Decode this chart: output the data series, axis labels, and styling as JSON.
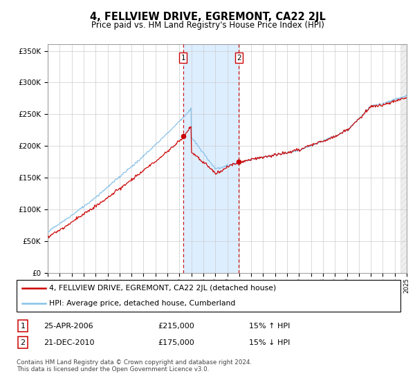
{
  "title": "4, FELLVIEW DRIVE, EGREMONT, CA22 2JL",
  "subtitle": "Price paid vs. HM Land Registry's House Price Index (HPI)",
  "legend_line1": "4, FELLVIEW DRIVE, EGREMONT, CA22 2JL (detached house)",
  "legend_line2": "HPI: Average price, detached house, Cumberland",
  "transaction1_date": "25-APR-2006",
  "transaction1_price": "£215,000",
  "transaction1_hpi": "15% ↑ HPI",
  "transaction2_date": "21-DEC-2010",
  "transaction2_price": "£175,000",
  "transaction2_hpi": "15% ↓ HPI",
  "footer": "Contains HM Land Registry data © Crown copyright and database right 2024.\nThis data is licensed under the Open Government Licence v3.0.",
  "hpi_color": "#85c1e8",
  "price_color": "#cc0000",
  "marker_color": "#cc0000",
  "vline_color": "#cc0000",
  "shade_color": "#ddeeff",
  "ylim": [
    0,
    360000
  ],
  "yticks": [
    0,
    50000,
    100000,
    150000,
    200000,
    250000,
    300000,
    350000
  ],
  "ytick_labels": [
    "£0",
    "£50K",
    "£100K",
    "£150K",
    "£200K",
    "£250K",
    "£300K",
    "£350K"
  ],
  "year_start": 1995,
  "year_end": 2025,
  "transaction1_year": 2006.32,
  "transaction1_value": 215000,
  "transaction2_year": 2010.97,
  "transaction2_value": 175000
}
